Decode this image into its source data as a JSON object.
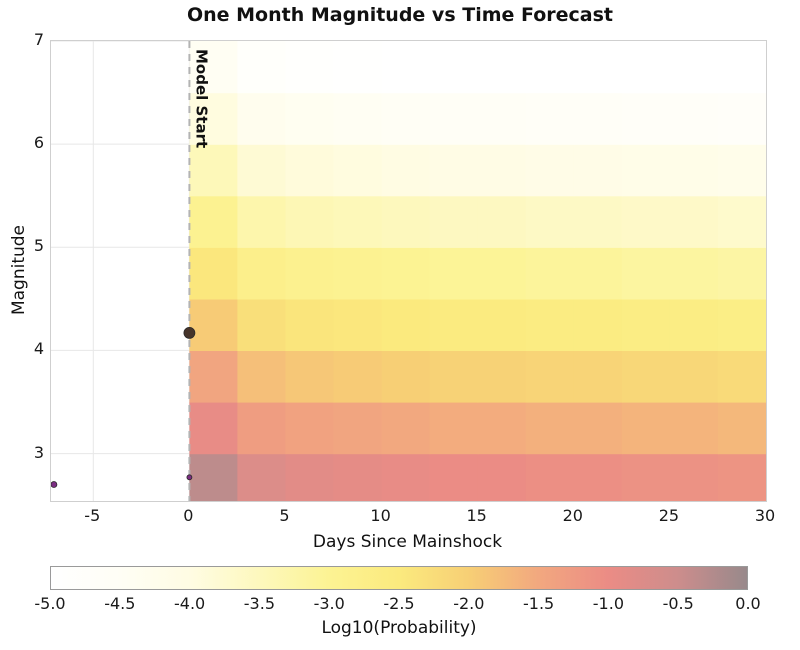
{
  "chart_data": {
    "type": "heatmap",
    "title": "One Month Magnitude vs Time Forecast",
    "xlabel": "Days Since Mainshock",
    "ylabel": "Magnitude",
    "colorbar_label": "Log10(Probability)",
    "xlim": [
      -7.2,
      30
    ],
    "ylim": [
      2.54,
      7.0
    ],
    "x_ticks": [
      "-5",
      "0",
      "5",
      "10",
      "15",
      "20",
      "25",
      "30"
    ],
    "x_tick_values": [
      -5,
      0,
      5,
      10,
      15,
      20,
      25,
      30
    ],
    "y_ticks": [
      "3",
      "4",
      "5",
      "6",
      "7"
    ],
    "y_tick_values": [
      3,
      4,
      5,
      6,
      7
    ],
    "colorbar_ticks": [
      "-5.0",
      "-4.5",
      "-4.0",
      "-3.5",
      "-3.0",
      "-2.5",
      "-2.0",
      "-1.5",
      "-1.0",
      "-0.5",
      "0.0"
    ],
    "colorbar_tick_values": [
      -5.0,
      -4.5,
      -4.0,
      -3.5,
      -3.0,
      -2.5,
      -2.0,
      -1.5,
      -1.0,
      -0.5,
      0.0
    ],
    "colorbar_range": [
      -5,
      0
    ],
    "grid_color": "#e7e7e7",
    "background": "#ffffff",
    "x_bin_edges_days": [
      0,
      2.5,
      5,
      7.5,
      10,
      12.5,
      15,
      17.5,
      20,
      22.5,
      25,
      27.5,
      30
    ],
    "y_bin_edges_magnitude": [
      2.5,
      3.0,
      3.5,
      4.0,
      4.5,
      5.0,
      5.5,
      6.0,
      6.5,
      7.0
    ],
    "log10_probability_grid_rows_low_to_high_magnitude": [
      [
        -0.35,
        -0.75,
        -0.85,
        -0.9,
        -0.95,
        -1.0,
        -1.0,
        -1.05,
        -1.05,
        -1.1,
        -1.1,
        -1.15
      ],
      [
        -0.95,
        -1.3,
        -1.4,
        -1.45,
        -1.5,
        -1.55,
        -1.55,
        -1.6,
        -1.6,
        -1.65,
        -1.65,
        -1.7
      ],
      [
        -1.45,
        -1.8,
        -1.9,
        -1.95,
        -2.0,
        -2.05,
        -2.05,
        -2.1,
        -2.1,
        -2.15,
        -2.15,
        -2.2
      ],
      [
        -1.95,
        -2.3,
        -2.4,
        -2.45,
        -2.5,
        -2.55,
        -2.55,
        -2.6,
        -2.6,
        -2.65,
        -2.65,
        -2.7
      ],
      [
        -2.45,
        -2.8,
        -2.9,
        -2.95,
        -3.0,
        -3.05,
        -3.05,
        -3.1,
        -3.1,
        -3.15,
        -3.15,
        -3.2
      ],
      [
        -2.95,
        -3.3,
        -3.4,
        -3.45,
        -3.5,
        -3.55,
        -3.55,
        -3.6,
        -3.6,
        -3.65,
        -3.65,
        -3.7
      ],
      [
        -3.45,
        -3.8,
        -3.9,
        -3.95,
        -4.0,
        -4.05,
        -4.05,
        -4.1,
        -4.1,
        -4.15,
        -4.15,
        -4.2
      ],
      [
        -3.95,
        -4.3,
        -4.4,
        -4.45,
        -4.5,
        -4.55,
        -4.55,
        -4.6,
        -4.6,
        -4.65,
        -4.65,
        -4.7
      ],
      [
        -4.45,
        -4.8,
        -4.9,
        -4.95,
        -5.0,
        -5.0,
        -5.0,
        -5.0,
        -5.0,
        -5.0,
        -5.0,
        -5.0
      ]
    ],
    "colormap_stops": [
      {
        "value": -5.0,
        "color": "#ffffff"
      },
      {
        "value": -4.5,
        "color": "#fffef5"
      },
      {
        "value": -4.0,
        "color": "#fffce3"
      },
      {
        "value": -3.5,
        "color": "#fdf8bd"
      },
      {
        "value": -3.0,
        "color": "#fcf393"
      },
      {
        "value": -2.5,
        "color": "#fbea7e"
      },
      {
        "value": -2.0,
        "color": "#f7cf75"
      },
      {
        "value": -1.5,
        "color": "#f2a87f"
      },
      {
        "value": -1.0,
        "color": "#eb8c85"
      },
      {
        "value": -0.5,
        "color": "#cd8d8c"
      },
      {
        "value": 0.0,
        "color": "#98898b"
      }
    ],
    "model_start": {
      "x": 0,
      "label": "Model Start",
      "line_color": "#b3b3b3"
    },
    "catalog_points": [
      {
        "x": -7.05,
        "y": 2.7,
        "radius": 3.0,
        "color": "#7b2d82"
      },
      {
        "x": 0.0,
        "y": 2.77,
        "radius": 2.5,
        "color": "#7b2d82"
      },
      {
        "x": 0.0,
        "y": 4.17,
        "radius": 5.5,
        "color": "#46342a"
      }
    ]
  }
}
